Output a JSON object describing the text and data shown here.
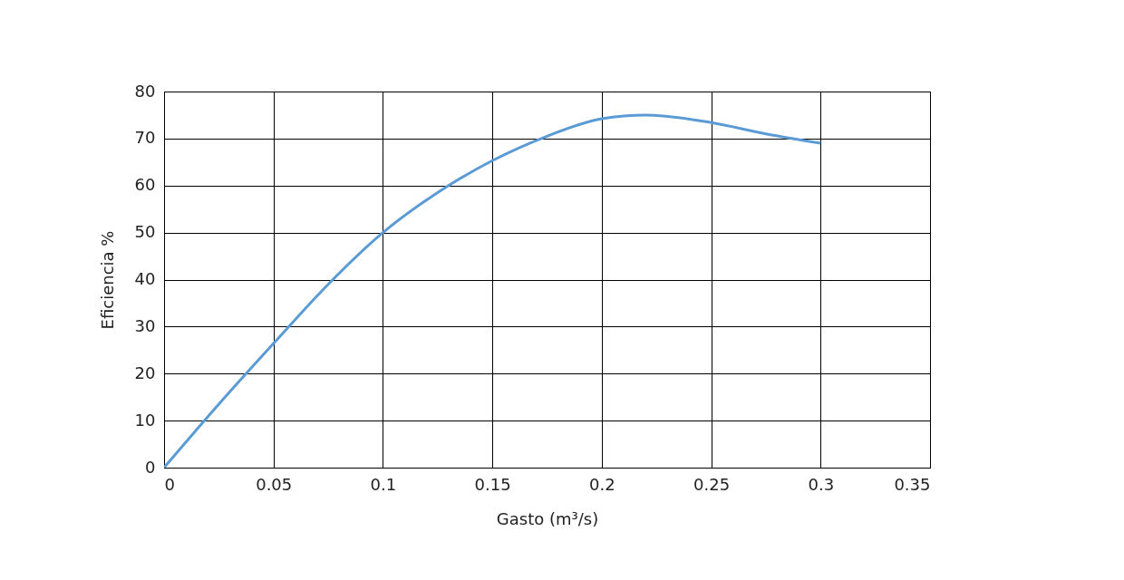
{
  "chart_data": {
    "type": "line",
    "xlabel": "Gasto (m³/s)",
    "ylabel": "Eficiencia %",
    "x": [
      0,
      0.025,
      0.05,
      0.075,
      0.1,
      0.125,
      0.15,
      0.175,
      0.2,
      0.22,
      0.25,
      0.275,
      0.3
    ],
    "series": [
      {
        "color": "#5b9bd5",
        "values": [
          0,
          13.5,
          26.4,
          39,
          50,
          58.5,
          65.3,
          70.5,
          74.2,
          75,
          73.4,
          71,
          69
        ]
      }
    ],
    "xlim": [
      0,
      0.35
    ],
    "xticks": [
      0,
      0.05,
      0.1,
      0.15,
      0.2,
      0.25,
      0.3,
      0.35
    ],
    "ylim": [
      0,
      80
    ],
    "yticks": [
      0,
      10,
      20,
      30,
      40,
      50,
      60,
      70,
      80
    ],
    "grid": true,
    "marker": "none",
    "line_style": "solid",
    "legend": false
  }
}
